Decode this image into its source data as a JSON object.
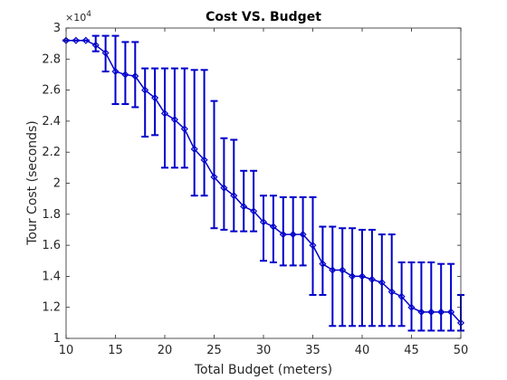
{
  "chart_data": {
    "type": "line",
    "title": "Cost VS. Budget",
    "xlabel": "Total Budget (meters)",
    "ylabel": "Tour Cost (seconds)",
    "y_exponent_label": "×10",
    "y_exponent_power": "4",
    "xlim": [
      10,
      50
    ],
    "ylim": [
      10000,
      30000
    ],
    "x_ticks": [
      "10",
      "15",
      "20",
      "25",
      "30",
      "35",
      "40",
      "45",
      "50"
    ],
    "y_ticks": [
      "1",
      "1.2",
      "1.4",
      "1.6",
      "1.8",
      "2",
      "2.2",
      "2.4",
      "2.6",
      "2.8",
      "3"
    ],
    "grid": false,
    "marker": "diamond",
    "color": "#0000cc",
    "series": [
      {
        "x": [
          10,
          11,
          12,
          13,
          14,
          15,
          16,
          17,
          18,
          19,
          20,
          21,
          22,
          23,
          24,
          25,
          26,
          27,
          28,
          29,
          30,
          31,
          32,
          33,
          34,
          35,
          36,
          37,
          38,
          39,
          40,
          41,
          42,
          43,
          44,
          45,
          46,
          47,
          48,
          49,
          50
        ],
        "y": [
          29200,
          29200,
          29200,
          28900,
          28400,
          27200,
          27000,
          26900,
          26000,
          25500,
          24500,
          24100,
          23500,
          22200,
          21500,
          20400,
          19700,
          19200,
          18500,
          18200,
          17500,
          17200,
          16700,
          16700,
          16700,
          16000,
          14800,
          14400,
          14400,
          14000,
          14000,
          13800,
          13600,
          13000,
          12700,
          12000,
          11700,
          11700,
          11700,
          11700,
          11000
        ],
        "err_low": [
          29200,
          29200,
          29200,
          28500,
          27200,
          25100,
          25100,
          24900,
          23000,
          23100,
          21000,
          21000,
          21000,
          19200,
          19200,
          17100,
          17000,
          16900,
          16900,
          16900,
          15000,
          14900,
          14700,
          14700,
          14700,
          12800,
          12800,
          10800,
          10800,
          10800,
          10800,
          10800,
          10800,
          10800,
          10800,
          10500,
          10500,
          10500,
          10500,
          10500,
          10500
        ],
        "err_high": [
          29200,
          29200,
          29200,
          29500,
          29500,
          29500,
          29100,
          29100,
          27400,
          27400,
          27400,
          27400,
          27400,
          27300,
          27300,
          25300,
          22900,
          22800,
          20800,
          20800,
          19200,
          19200,
          19100,
          19100,
          19100,
          19100,
          17200,
          17200,
          17100,
          17100,
          17000,
          17000,
          16700,
          16700,
          14900,
          14900,
          14900,
          14900,
          14800,
          14800,
          12800
        ]
      }
    ]
  }
}
